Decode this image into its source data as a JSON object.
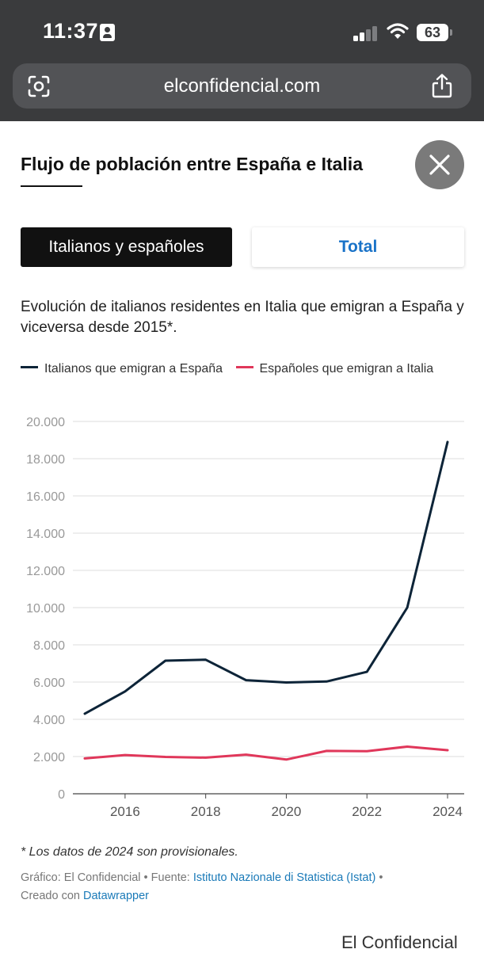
{
  "status_bar": {
    "time": "11:37",
    "battery": "63"
  },
  "browser": {
    "url": "elconfidencial.com"
  },
  "page": {
    "title": "Flujo de población entre España e Italia",
    "tabs": [
      {
        "label": "Italianos y españoles",
        "active": true
      },
      {
        "label": "Total",
        "active": false
      }
    ],
    "description": "Evolución de italianos residentes en Italia que emigran a España y viceversa desde 2015*.",
    "note": "* Los datos de 2024 son provisionales.",
    "source": {
      "grafico_label": "Gráfico: El Confidencial",
      "fuente_label": "Fuente:",
      "fuente_link": "Istituto Nazionale di Statistica (Istat)",
      "creado_label": "Creado con",
      "creado_link": "Datawrapper"
    },
    "brand": "El Confidencial"
  },
  "colors": {
    "italianos": "#0d2438",
    "espanoles": "#e0375a",
    "grid": "#dcdcdc",
    "axis_text": "#999999"
  },
  "chart_data": {
    "type": "line",
    "x": [
      2015,
      2016,
      2017,
      2018,
      2019,
      2020,
      2021,
      2022,
      2023,
      2024
    ],
    "x_ticks": [
      2016,
      2018,
      2020,
      2022,
      2024
    ],
    "xlim": [
      2015,
      2024
    ],
    "ylim": [
      0,
      20000
    ],
    "y_ticks": [
      0,
      2000,
      4000,
      6000,
      8000,
      10000,
      12000,
      14000,
      16000,
      18000,
      20000
    ],
    "y_tick_labels": [
      "0",
      "2.000",
      "4.000",
      "6.000",
      "8.000",
      "10.000",
      "12.000",
      "14.000",
      "16.000",
      "18.000",
      "20.000"
    ],
    "grid": true,
    "legend_position": "top",
    "series": [
      {
        "name": "Italianos que emigran a España",
        "values": [
          4300,
          5500,
          7150,
          7200,
          6100,
          5980,
          6030,
          6550,
          10000,
          18900
        ]
      },
      {
        "name": "Españoles que emigran a Italia",
        "values": [
          1900,
          2080,
          1980,
          1940,
          2100,
          1840,
          2300,
          2290,
          2530,
          2340
        ]
      }
    ]
  }
}
